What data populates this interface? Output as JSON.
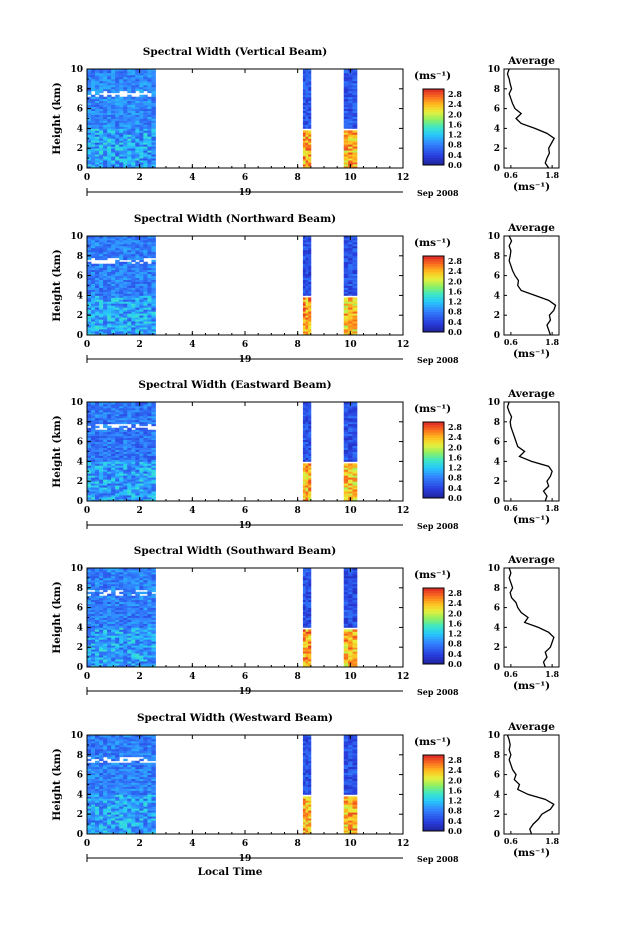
{
  "chart_data": [
    {
      "type": "heatmap",
      "title": "Spectral Width (Vertical Beam)",
      "xlabel": "",
      "ylabel": "Height (km)",
      "xlim": [
        0,
        12
      ],
      "ylim": [
        0,
        10
      ],
      "xticks": [
        "0",
        "2",
        "4",
        "6",
        "8",
        "10",
        "12"
      ],
      "yticks": [
        "0",
        "2",
        "4",
        "6",
        "8",
        "10"
      ],
      "day": "19",
      "month": "Sep 2008",
      "colorbar": {
        "unit": "(ms⁻¹)",
        "ticks": [
          "0.0",
          "0.4",
          "0.8",
          "1.2",
          "1.6",
          "2.0",
          "2.4",
          "2.8"
        ],
        "range": [
          0,
          3.0
        ]
      },
      "blocks": [
        {
          "x0": 0,
          "x1": 2.6,
          "mean": 0.85,
          "level_below_4km": 1.0
        },
        {
          "x0": 8.2,
          "x1": 8.5,
          "mean": 0.55,
          "level_below_4km": 2.5
        },
        {
          "x0": 9.75,
          "x1": 10.25,
          "mean": 0.55,
          "level_below_4km": 2.4
        }
      ],
      "profile": {
        "title": "Average",
        "xlabel": "(ms⁻¹)",
        "xticks": [
          "0.6",
          "1.8"
        ],
        "xlim": [
          0.4,
          2.0
        ],
        "heights": [
          0,
          0.5,
          1,
          1.5,
          2,
          2.5,
          3,
          3.5,
          4,
          4.5,
          5,
          5.5,
          6,
          6.5,
          7,
          7.5,
          8,
          8.5,
          9,
          9.5,
          10
        ],
        "values": [
          1.7,
          1.6,
          1.65,
          1.72,
          1.7,
          1.78,
          1.86,
          1.65,
          1.3,
          0.9,
          0.75,
          0.9,
          0.72,
          0.65,
          0.6,
          0.55,
          0.62,
          0.58,
          0.55,
          0.5,
          0.55
        ]
      }
    },
    {
      "type": "heatmap",
      "title": "Spectral Width (Northward Beam)",
      "xlabel": "",
      "ylabel": "Height (km)",
      "xlim": [
        0,
        12
      ],
      "ylim": [
        0,
        10
      ],
      "xticks": [
        "0",
        "2",
        "4",
        "6",
        "8",
        "10",
        "12"
      ],
      "yticks": [
        "0",
        "2",
        "4",
        "6",
        "8",
        "10"
      ],
      "day": "19",
      "month": "Sep 2008",
      "colorbar": {
        "unit": "(ms⁻¹)",
        "ticks": [
          "0.0",
          "0.4",
          "0.8",
          "1.2",
          "1.6",
          "2.0",
          "2.4",
          "2.8"
        ],
        "range": [
          0,
          3.0
        ]
      },
      "blocks": [
        {
          "x0": 0,
          "x1": 2.6,
          "mean": 0.8,
          "level_below_4km": 1.0
        },
        {
          "x0": 8.2,
          "x1": 8.5,
          "mean": 0.5,
          "level_below_4km": 2.5
        },
        {
          "x0": 9.75,
          "x1": 10.25,
          "mean": 0.5,
          "level_below_4km": 2.3
        }
      ],
      "profile": {
        "title": "Average",
        "xlabel": "(ms⁻¹)",
        "xticks": [
          "0.6",
          "1.8"
        ],
        "xlim": [
          0.4,
          2.0
        ],
        "heights": [
          0,
          0.5,
          1,
          1.5,
          2,
          2.5,
          3,
          3.5,
          4,
          4.5,
          5,
          5.5,
          6,
          6.5,
          7,
          7.5,
          8,
          8.5,
          9,
          9.5,
          10
        ],
        "values": [
          1.75,
          1.7,
          1.65,
          1.75,
          1.72,
          1.85,
          1.9,
          1.7,
          1.3,
          0.9,
          0.8,
          0.82,
          0.72,
          0.65,
          0.6,
          0.55,
          0.58,
          0.6,
          0.55,
          0.62,
          0.55
        ]
      }
    },
    {
      "type": "heatmap",
      "title": "Spectral Width (Eastward Beam)",
      "xlabel": "",
      "ylabel": "Height (km)",
      "xlim": [
        0,
        12
      ],
      "ylim": [
        0,
        10
      ],
      "xticks": [
        "0",
        "2",
        "4",
        "6",
        "8",
        "10",
        "12"
      ],
      "yticks": [
        "0",
        "2",
        "4",
        "6",
        "8",
        "10"
      ],
      "day": "19",
      "month": "Sep 2008",
      "colorbar": {
        "unit": "(ms⁻¹)",
        "ticks": [
          "0.0",
          "0.4",
          "0.8",
          "1.2",
          "1.6",
          "2.0",
          "2.4",
          "2.8"
        ],
        "range": [
          0,
          3.0
        ]
      },
      "blocks": [
        {
          "x0": 0,
          "x1": 2.6,
          "mean": 0.75,
          "level_below_4km": 1.0
        },
        {
          "x0": 8.2,
          "x1": 8.5,
          "mean": 0.5,
          "level_below_4km": 2.4
        },
        {
          "x0": 9.75,
          "x1": 10.25,
          "mean": 0.5,
          "level_below_4km": 2.3
        }
      ],
      "profile": {
        "title": "Average",
        "xlabel": "(ms⁻¹)",
        "xticks": [
          "0.6",
          "1.8"
        ],
        "xlim": [
          0.4,
          2.0
        ],
        "heights": [
          0,
          0.5,
          1,
          1.5,
          2,
          2.5,
          3,
          3.5,
          4,
          4.5,
          5,
          5.5,
          6,
          6.5,
          7,
          7.5,
          8,
          8.5,
          9,
          9.5,
          10
        ],
        "values": [
          1.6,
          1.65,
          1.55,
          1.7,
          1.65,
          1.75,
          1.8,
          1.7,
          1.2,
          0.85,
          1.0,
          0.8,
          0.75,
          0.7,
          0.65,
          0.6,
          0.58,
          0.62,
          0.55,
          0.5,
          0.55
        ]
      }
    },
    {
      "type": "heatmap",
      "title": "Spectral Width (Southward Beam)",
      "xlabel": "",
      "ylabel": "Height (km)",
      "xlim": [
        0,
        12
      ],
      "ylim": [
        0,
        10
      ],
      "xticks": [
        "0",
        "2",
        "4",
        "6",
        "8",
        "10",
        "12"
      ],
      "yticks": [
        "0",
        "2",
        "4",
        "6",
        "8",
        "10"
      ],
      "day": "19",
      "month": "Sep 2008",
      "colorbar": {
        "unit": "(ms⁻¹)",
        "ticks": [
          "0.0",
          "0.4",
          "0.8",
          "1.2",
          "1.6",
          "2.0",
          "2.4",
          "2.8"
        ],
        "range": [
          0,
          3.0
        ]
      },
      "blocks": [
        {
          "x0": 0,
          "x1": 2.6,
          "mean": 0.8,
          "level_below_4km": 1.0
        },
        {
          "x0": 8.2,
          "x1": 8.5,
          "mean": 0.5,
          "level_below_4km": 2.5
        },
        {
          "x0": 9.75,
          "x1": 10.25,
          "mean": 0.5,
          "level_below_4km": 2.4
        }
      ],
      "profile": {
        "title": "Average",
        "xlabel": "(ms⁻¹)",
        "xticks": [
          "0.6",
          "1.8"
        ],
        "xlim": [
          0.4,
          2.0
        ],
        "heights": [
          0,
          0.5,
          1,
          1.5,
          2,
          2.5,
          3,
          3.5,
          4,
          4.5,
          5,
          5.5,
          6,
          6.5,
          7,
          7.5,
          8,
          8.5,
          9,
          9.5,
          10
        ],
        "values": [
          1.6,
          1.55,
          1.65,
          1.6,
          1.75,
          1.8,
          1.85,
          1.7,
          1.4,
          1.0,
          1.1,
          0.9,
          0.8,
          0.75,
          0.62,
          0.58,
          0.65,
          0.6,
          0.55,
          0.6,
          0.55
        ]
      }
    },
    {
      "type": "heatmap",
      "title": "Spectral Width (Westward Beam)",
      "xlabel": "Local Time",
      "ylabel": "Height (km)",
      "xlim": [
        0,
        12
      ],
      "ylim": [
        0,
        10
      ],
      "xticks": [
        "0",
        "2",
        "4",
        "6",
        "8",
        "10",
        "12"
      ],
      "yticks": [
        "0",
        "2",
        "4",
        "6",
        "8",
        "10"
      ],
      "day": "19",
      "month": "Sep 2008",
      "colorbar": {
        "unit": "(ms⁻¹)",
        "ticks": [
          "0.0",
          "0.4",
          "0.8",
          "1.2",
          "1.6",
          "2.0",
          "2.4",
          "2.8"
        ],
        "range": [
          0,
          3.0
        ]
      },
      "blocks": [
        {
          "x0": 0,
          "x1": 2.6,
          "mean": 0.8,
          "level_below_4km": 1.0
        },
        {
          "x0": 8.2,
          "x1": 8.5,
          "mean": 0.5,
          "level_below_4km": 2.4
        },
        {
          "x0": 9.75,
          "x1": 10.25,
          "mean": 0.5,
          "level_below_4km": 2.4
        }
      ],
      "profile": {
        "title": "Average",
        "xlabel": "(ms⁻¹)",
        "xticks": [
          "0.6",
          "1.8"
        ],
        "xlim": [
          0.4,
          2.0
        ],
        "heights": [
          0,
          0.5,
          1,
          1.5,
          2,
          2.5,
          3,
          3.5,
          4,
          4.5,
          5,
          5.5,
          6,
          6.5,
          7,
          7.5,
          8,
          8.5,
          9,
          9.5,
          10
        ],
        "values": [
          1.2,
          1.15,
          1.25,
          1.4,
          1.5,
          1.75,
          1.85,
          1.6,
          1.1,
          0.8,
          0.85,
          0.7,
          0.75,
          0.65,
          0.6,
          0.55,
          0.6,
          0.55,
          0.58,
          0.55,
          0.5
        ]
      }
    }
  ]
}
